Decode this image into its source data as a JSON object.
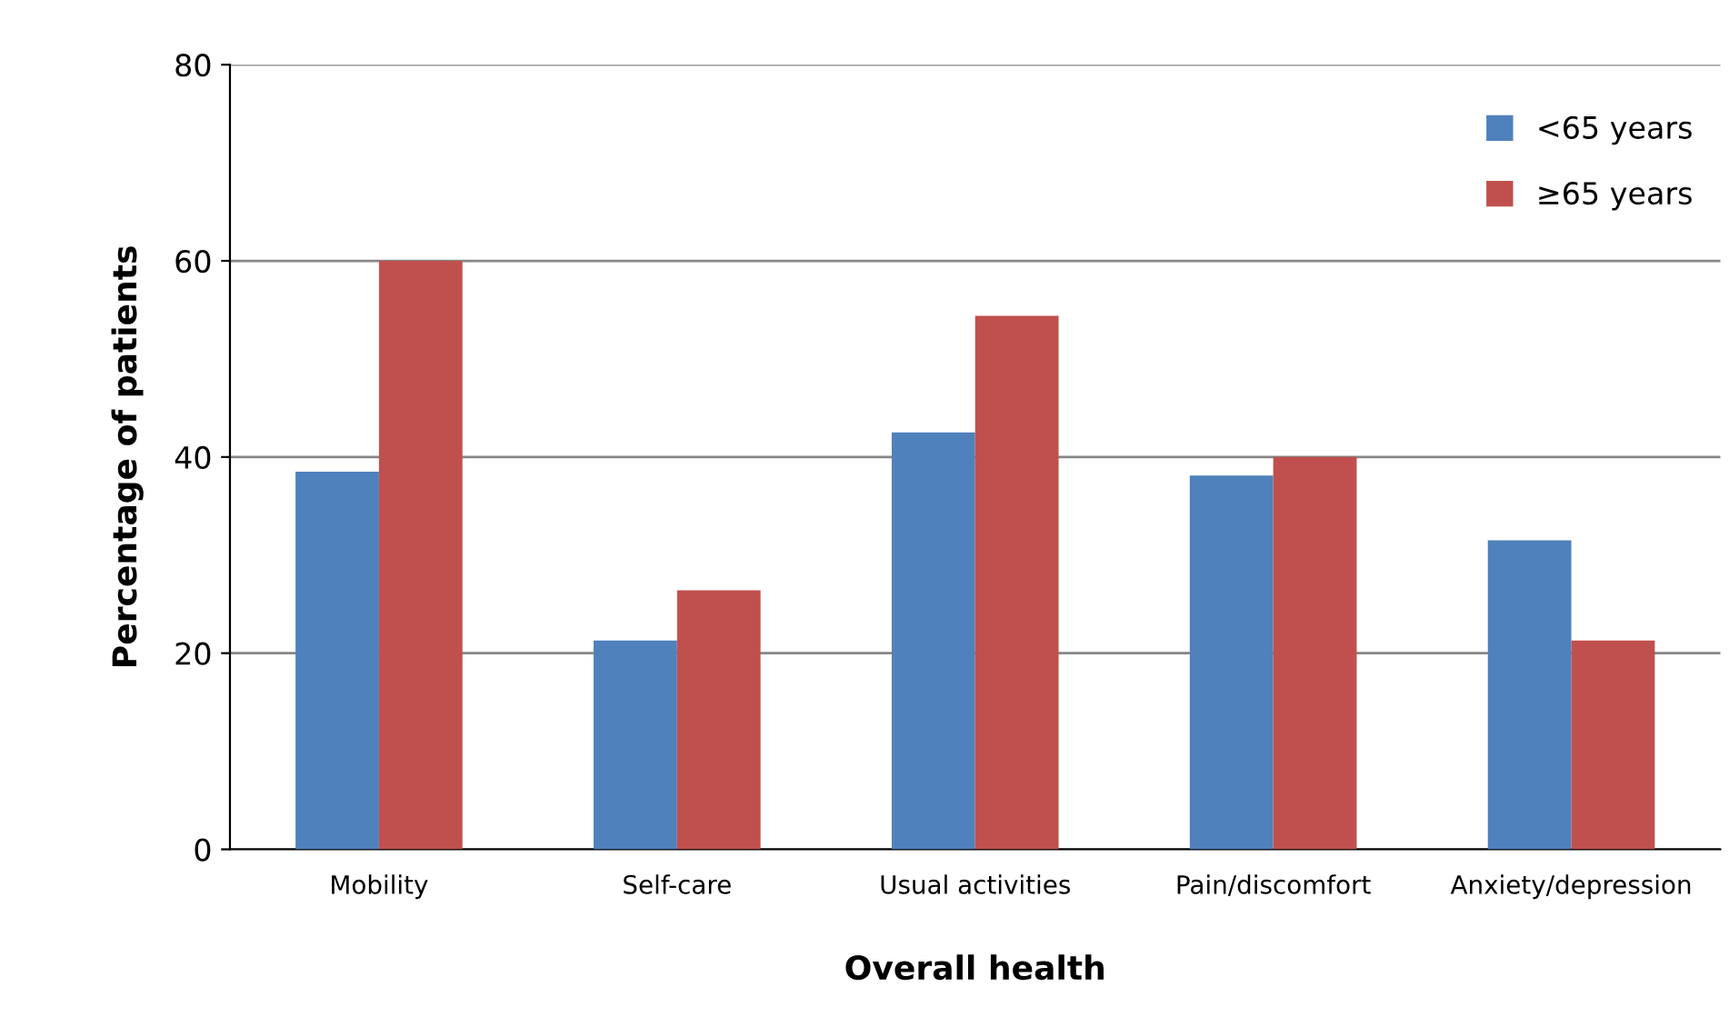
{
  "chart_data": {
    "type": "bar",
    "xlabel": "Overall health",
    "ylabel": "Percentage of patients",
    "categories": [
      "Mobility",
      "Self-care",
      "Usual activities",
      "Pain/discomfort",
      "Anxiety/depression"
    ],
    "series": [
      {
        "name": "<65 years",
        "color": "#4f81bd",
        "values": [
          38.5,
          21.3,
          42.5,
          38.1,
          31.5
        ]
      },
      {
        "name": "≥65 years",
        "color": "#c0504d",
        "values": [
          60.0,
          26.4,
          54.4,
          40.0,
          21.3
        ]
      }
    ],
    "ylim": [
      0,
      80
    ],
    "yticks": [
      0,
      20,
      40,
      60,
      80
    ],
    "grid": "y",
    "legend": "top right"
  }
}
